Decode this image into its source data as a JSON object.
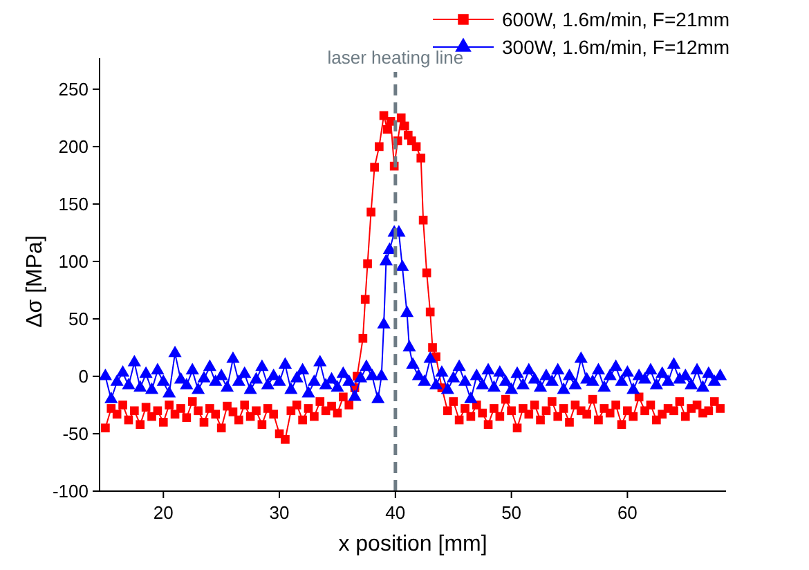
{
  "chart_data": {
    "type": "line",
    "xlabel": "x position [mm]",
    "ylabel": "Δσ [MPa]",
    "xlim": [
      14.5,
      68.5
    ],
    "ylim": [
      -100,
      265
    ],
    "xticks": [
      20,
      30,
      40,
      50,
      60
    ],
    "yticks": [
      -100,
      -50,
      0,
      50,
      100,
      150,
      200,
      250
    ],
    "grid": false,
    "legend": "top right",
    "line_style": "solid",
    "ref_lines": [
      {
        "axis": "x",
        "value": 40,
        "label": "laser heating line",
        "color": "#6d7b84",
        "line_style": "dashed"
      }
    ],
    "series": [
      {
        "name": "600W, 1.6m/min, F=21mm",
        "color": "#ff0000",
        "marker": "square",
        "x": [
          15,
          15.5,
          16,
          16.5,
          17,
          17.5,
          18,
          18.5,
          19,
          19.5,
          20,
          20.5,
          21,
          21.5,
          22,
          22.5,
          23,
          23.5,
          24,
          24.5,
          25,
          25.5,
          26,
          26.5,
          27,
          27.5,
          28,
          28.5,
          29,
          29.5,
          30,
          30.5,
          31,
          31.5,
          32,
          32.5,
          33,
          33.5,
          34,
          34.5,
          35,
          35.5,
          36,
          36.5,
          36.7,
          37.2,
          37.4,
          37.6,
          37.9,
          38.2,
          38.6,
          39,
          39.3,
          39.6,
          39.9,
          40.2,
          40.5,
          40.8,
          41.1,
          41.4,
          41.8,
          42.2,
          42.4,
          42.7,
          43,
          43.2,
          43.5,
          44,
          44.5,
          45,
          45.5,
          46,
          46.5,
          47,
          47.5,
          48,
          48.5,
          49,
          49.5,
          50,
          50.5,
          51,
          51.5,
          52,
          52.5,
          53,
          53.5,
          54,
          54.5,
          55,
          55.5,
          56,
          56.5,
          57,
          57.5,
          58,
          58.5,
          59,
          59.5,
          60,
          60.5,
          61,
          61.5,
          62,
          62.5,
          63,
          63.5,
          64,
          64.5,
          65,
          65.5,
          66,
          66.5,
          67,
          67.5,
          68
        ],
        "values": [
          -45,
          -28,
          -33,
          -25,
          -38,
          -30,
          -42,
          -27,
          -35,
          -30,
          -40,
          -25,
          -33,
          -28,
          -36,
          -22,
          -30,
          -40,
          -28,
          -33,
          -45,
          -26,
          -31,
          -38,
          -25,
          -35,
          -30,
          -42,
          -28,
          -33,
          -50,
          -55,
          -30,
          -25,
          -38,
          -28,
          -35,
          -22,
          -30,
          -26,
          -32,
          -18,
          -25,
          -10,
          0,
          33,
          67,
          98,
          143,
          182,
          200,
          227,
          215,
          222,
          183,
          205,
          225,
          218,
          210,
          205,
          200,
          190,
          136,
          90,
          56,
          25,
          17,
          -10,
          -30,
          -22,
          -38,
          -28,
          -35,
          -25,
          -32,
          -42,
          -28,
          -35,
          -20,
          -30,
          -45,
          -28,
          -33,
          -25,
          -38,
          -30,
          -22,
          -35,
          -28,
          -40,
          -25,
          -30,
          -33,
          -20,
          -38,
          -28,
          -32,
          -25,
          -42,
          -30,
          -35,
          -18,
          -30,
          -25,
          -38,
          -33,
          -28,
          -30,
          -22,
          -35,
          -28,
          -25,
          -32,
          -30,
          -22,
          -28
        ]
      },
      {
        "name": "300W, 1.6m/min, F=12mm",
        "color": "#0000ff",
        "marker": "triangle",
        "x": [
          15,
          15.5,
          16,
          16.5,
          17,
          17.5,
          18,
          18.5,
          19,
          19.5,
          20,
          20.5,
          21,
          21.5,
          22,
          22.5,
          23,
          23.5,
          24,
          24.5,
          25,
          25.5,
          26,
          26.5,
          27,
          27.5,
          28,
          28.5,
          29,
          29.5,
          30,
          30.5,
          31,
          31.5,
          32,
          32.5,
          33,
          33.5,
          34,
          34.5,
          35,
          35.5,
          36,
          36.5,
          37,
          37.5,
          38,
          38.5,
          38.8,
          39,
          39.2,
          39.5,
          39.9,
          40.3,
          40.6,
          41,
          41.2,
          41.5,
          42,
          42.5,
          43,
          43.5,
          44,
          44.5,
          45,
          45.5,
          46,
          46.5,
          47,
          47.5,
          48,
          48.5,
          49,
          49.5,
          50,
          50.5,
          51,
          51.5,
          52,
          52.5,
          53,
          53.5,
          54,
          54.5,
          55,
          55.5,
          56,
          56.5,
          57,
          57.5,
          58,
          58.5,
          59,
          59.5,
          60,
          60.5,
          61,
          61.5,
          62,
          62.5,
          63,
          63.5,
          64,
          64.5,
          65,
          65.5,
          66,
          66.5,
          67,
          67.5,
          68
        ],
        "values": [
          0,
          -20,
          -5,
          3,
          -8,
          12,
          -10,
          2,
          -12,
          5,
          -5,
          -15,
          20,
          -3,
          -8,
          5,
          -12,
          -2,
          8,
          -5,
          0,
          -10,
          15,
          -5,
          2,
          -12,
          -3,
          8,
          -8,
          0,
          -5,
          10,
          -12,
          -2,
          5,
          -15,
          -5,
          12,
          -8,
          -3,
          -10,
          2,
          -5,
          -18,
          -2,
          8,
          0,
          -20,
          0,
          45,
          100,
          110,
          125,
          125,
          95,
          55,
          25,
          10,
          0,
          -5,
          15,
          -8,
          3,
          -12,
          -2,
          8,
          -5,
          -20,
          0,
          -8,
          5,
          -10,
          3,
          -5,
          -12,
          2,
          -8,
          5,
          -3,
          -10,
          0,
          -5,
          5,
          -12,
          0,
          -8,
          15,
          -3,
          -5,
          5,
          -10,
          0,
          8,
          -5,
          3,
          -12,
          0,
          -3,
          5,
          -8,
          2,
          -5,
          10,
          -3,
          0,
          -8,
          5,
          -10,
          2,
          -5,
          0
        ]
      }
    ]
  }
}
